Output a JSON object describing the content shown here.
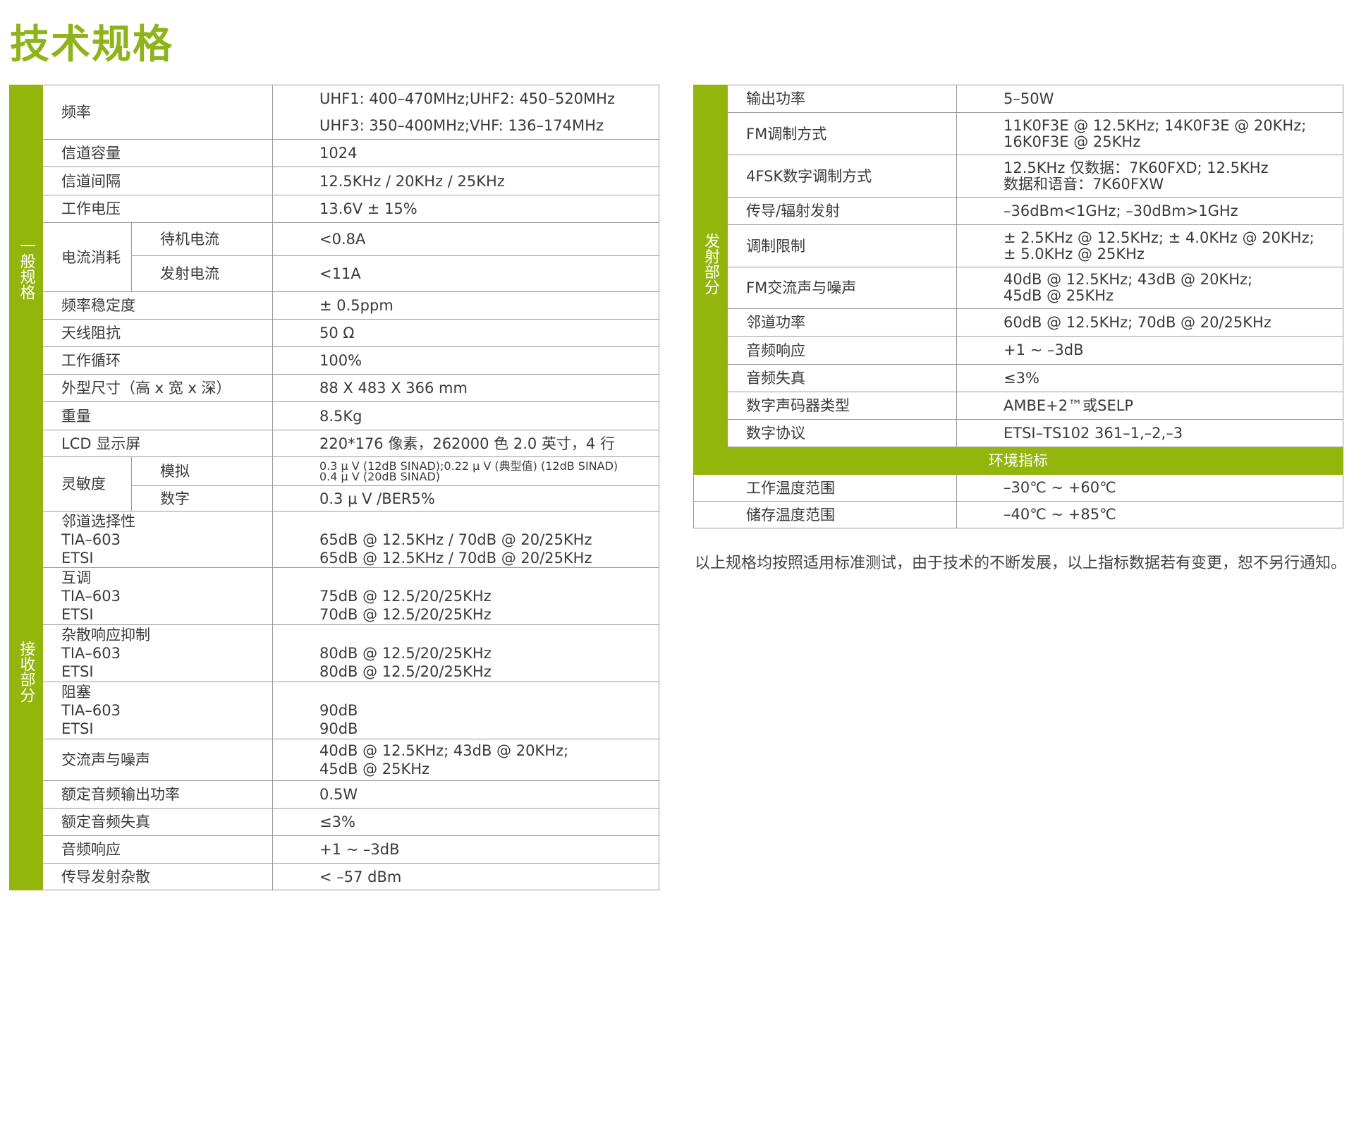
{
  "title": "技术规格",
  "colors": {
    "accent": "#93b50c",
    "title": "#8fb31a"
  },
  "general": {
    "section": "一般规格",
    "rows": [
      {
        "label": "频率",
        "value": [
          "UHF1: 400–470MHz;UHF2: 450–520MHz",
          "UHF3: 350–400MHz;VHF: 136–174MHz"
        ]
      },
      {
        "label": "信道容量",
        "value": "1024"
      },
      {
        "label": "信道间隔",
        "value": "12.5KHz / 20KHz / 25KHz"
      },
      {
        "label": "工作电压",
        "value": "13.6V ± 15%"
      },
      {
        "label": "电流消耗",
        "sub": [
          {
            "label": "待机电流",
            "value": "<0.8A"
          },
          {
            "label": "发射电流",
            "value": "<11A"
          }
        ]
      },
      {
        "label": "频率稳定度",
        "value": " ± 0.5ppm"
      },
      {
        "label": "天线阻抗",
        "value": "50 Ω"
      },
      {
        "label": "工作循环",
        "value": "100%"
      },
      {
        "label": "外型尺寸（高 x 宽 x 深）",
        "value": "88 X 483 X 366 mm"
      },
      {
        "label": "重量",
        "value": "8.5Kg"
      },
      {
        "label": "LCD 显示屏",
        "value": "220*176 像素，262000 色  2.0 英寸，4 行"
      }
    ]
  },
  "receiver": {
    "section": "接收部分",
    "rows": [
      {
        "label": "灵敏度",
        "sub": [
          {
            "label": "模拟",
            "value": [
              "0.3 μ V (12dB SINAD);0.22 μ V (典型值) (12dB SINAD)",
              "0.4 μ V (20dB SINAD)"
            ]
          },
          {
            "label": "数字",
            "value": "0.3 μ V /BER5%"
          }
        ]
      },
      {
        "label": [
          "邻道选择性",
          "TIA–603",
          "ETSI"
        ],
        "value": [
          "65dB @ 12.5KHz / 70dB @ 20/25KHz",
          "65dB @ 12.5KHz / 70dB @ 20/25KHz"
        ]
      },
      {
        "label": [
          "互调",
          "TIA–603",
          "ETSI"
        ],
        "value": [
          "75dB @ 12.5/20/25KHz",
          "70dB @ 12.5/20/25KHz"
        ]
      },
      {
        "label": [
          "杂散响应抑制",
          "TIA–603",
          "ETSI"
        ],
        "value": [
          "80dB @ 12.5/20/25KHz",
          "80dB @ 12.5/20/25KHz"
        ]
      },
      {
        "label": [
          "阻塞",
          "TIA–603",
          "ETSI"
        ],
        "value": [
          "90dB",
          "90dB"
        ]
      },
      {
        "label": "交流声与噪声",
        "value": [
          "40dB @ 12.5KHz; 43dB @ 20KHz;",
          "45dB @ 25KHz"
        ]
      },
      {
        "label": "额定音频输出功率",
        "value": "0.5W"
      },
      {
        "label": "额定音频失真",
        "value": "≤3%"
      },
      {
        "label": "音频响应",
        "value": "+1 ~ –3dB"
      },
      {
        "label": "传导发射杂散",
        "value": "< –57 dBm"
      }
    ]
  },
  "transmitter": {
    "section": "发射部分",
    "rows": [
      {
        "label": "输出功率",
        "value": [
          "5–50W"
        ]
      },
      {
        "label": "FM调制方式",
        "value": [
          "11K0F3E @ 12.5KHz; 14K0F3E @ 20KHz;",
          "16K0F3E @ 25KHz"
        ]
      },
      {
        "label": "4FSK数字调制方式",
        "value": [
          "12.5KHz 仅数据：7K60FXD; 12.5KHz",
          "数据和语音：7K60FXW"
        ]
      },
      {
        "label": "传导/辐射发射",
        "value": [
          "–36dBm<1GHz; –30dBm>1GHz"
        ]
      },
      {
        "label": "调制限制",
        "value": [
          " ± 2.5KHz @ 12.5KHz;  ± 4.0KHz @ 20KHz;",
          " ± 5.0KHz @ 25KHz"
        ]
      },
      {
        "label": "FM交流声与噪声",
        "value": [
          "40dB @ 12.5KHz; 43dB @ 20KHz;",
          "45dB @ 25KHz"
        ]
      },
      {
        "label": "邻道功率",
        "value": [
          "60dB @ 12.5KHz; 70dB @ 20/25KHz"
        ]
      },
      {
        "label": "音频响应",
        "value": [
          "+1 ~ –3dB"
        ]
      },
      {
        "label": "音频失真",
        "value": [
          "≤3%"
        ]
      },
      {
        "label": "数字声码器类型",
        "value": [
          "AMBE+2™或SELP"
        ]
      },
      {
        "label": "数字协议",
        "value": [
          "ETSI–TS102 361–1,–2,–3"
        ]
      }
    ]
  },
  "environment": {
    "header": "环境指标",
    "rows": [
      {
        "label": "工作温度范围",
        "value": "–30℃ ~ +60℃"
      },
      {
        "label": "储存温度范围",
        "value": "–40℃ ~ +85℃"
      }
    ]
  },
  "note": "以上规格均按照适用标准测试，由于技术的不断发展，以上指标数据若有变更，恕不另行通知。"
}
